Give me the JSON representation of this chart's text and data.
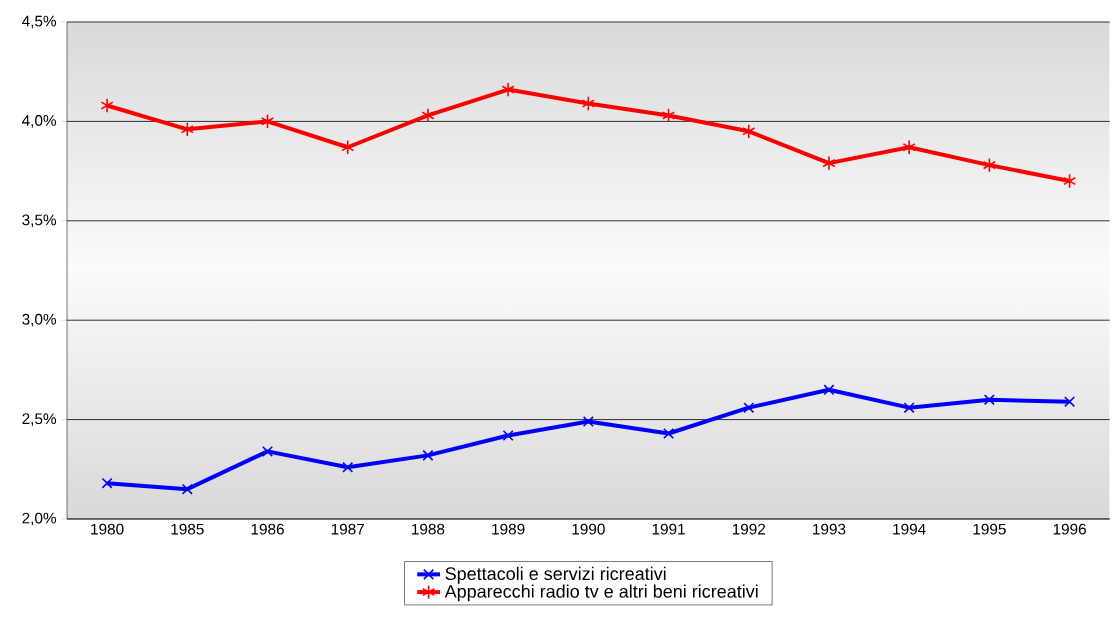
{
  "chart_data": {
    "type": "line",
    "categories": [
      "1980",
      "1985",
      "1986",
      "1987",
      "1988",
      "1989",
      "1990",
      "1991",
      "1992",
      "1993",
      "1994",
      "1995",
      "1996"
    ],
    "series": [
      {
        "name": "Spettacoli e servizi ricreativi",
        "color": "#0000ff",
        "marker": "cross",
        "values": [
          2.18,
          2.15,
          2.34,
          2.26,
          2.32,
          2.42,
          2.49,
          2.43,
          2.56,
          2.65,
          2.56,
          2.6,
          2.59
        ]
      },
      {
        "name": "Apparecchi radio tv e altri beni ricreativi",
        "color": "#ff0000",
        "marker": "cross",
        "values": [
          4.08,
          3.96,
          4.0,
          3.87,
          4.03,
          4.16,
          4.09,
          4.03,
          3.95,
          3.79,
          3.87,
          3.78,
          3.7
        ]
      }
    ],
    "ylim": [
      2.0,
      4.5
    ],
    "yticks": [
      {
        "value": 2.0,
        "label": "2,0%"
      },
      {
        "value": 2.5,
        "label": "2,5%"
      },
      {
        "value": 3.0,
        "label": "3,0%"
      },
      {
        "value": 3.5,
        "label": "3,5%"
      },
      {
        "value": 4.0,
        "label": "4,0%"
      },
      {
        "value": 4.5,
        "label": "4,5%"
      }
    ],
    "grid": "y",
    "legend": "bottom",
    "line_style": "solid"
  }
}
